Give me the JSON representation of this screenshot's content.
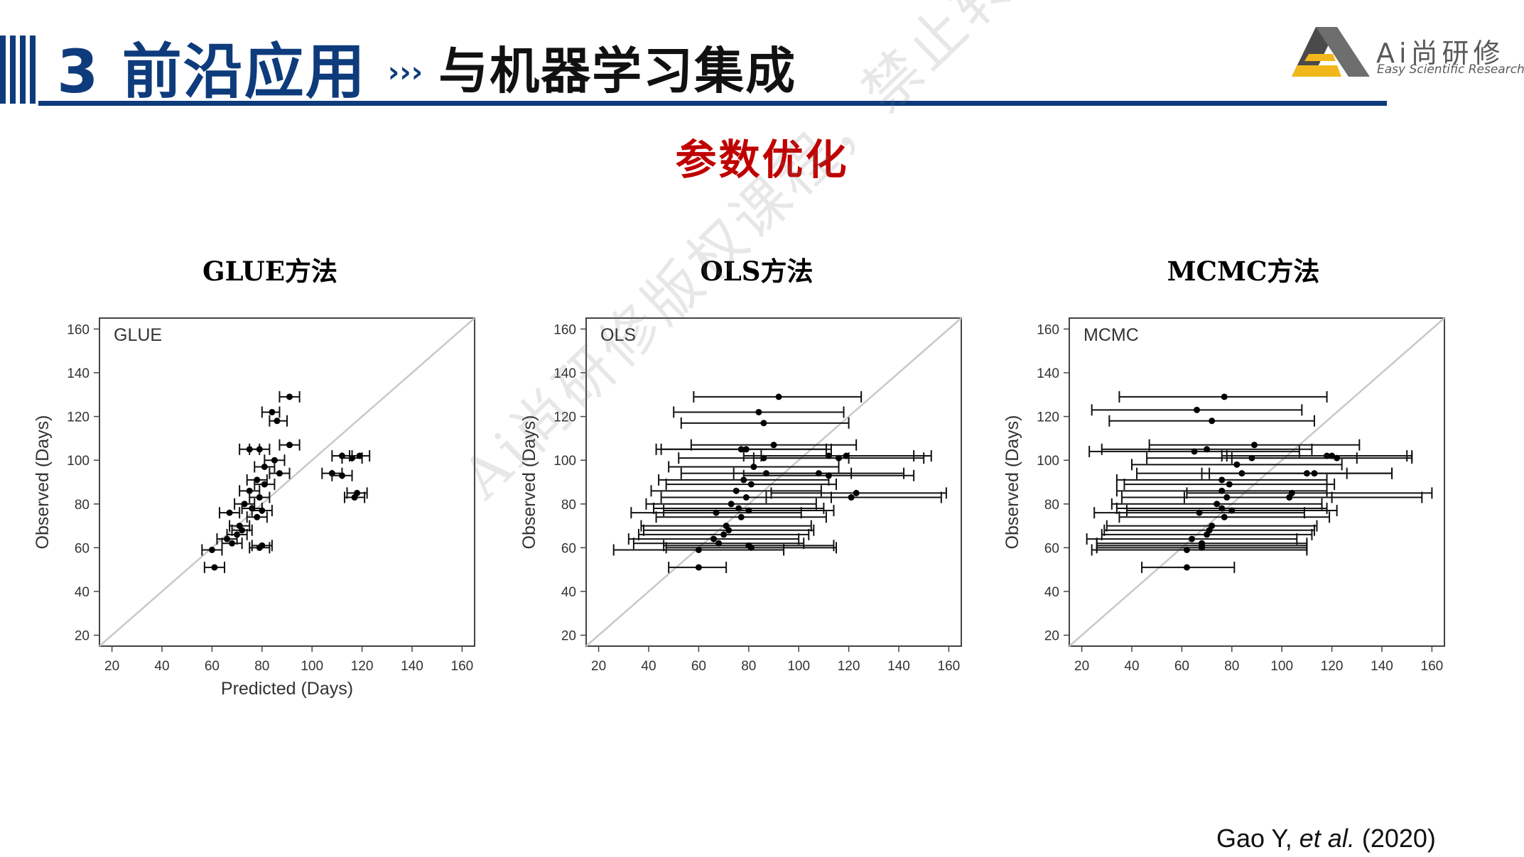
{
  "header": {
    "title_main": "3 前沿应用",
    "separator": "›››",
    "title_sub": "与机器学习集成"
  },
  "logo": {
    "text": "Ai尚研修",
    "tagline": "Easy Scientific Research"
  },
  "section_heading": "参数优化",
  "methods": [
    {
      "title": "GLUE方法"
    },
    {
      "title": "OLS方法"
    },
    {
      "title": "MCMC方法"
    }
  ],
  "watermark": "Ai尚研修版权课程，禁止转载、传播",
  "citation": {
    "author": "Gao Y, ",
    "etal": "et al.",
    "year": " (2020)"
  },
  "colors": {
    "brand_blue": "#0e3b7b",
    "heading_red": "#c00000",
    "identity_line": "#c8c8c8"
  },
  "chart_data": [
    {
      "type": "scatter",
      "panel_label": "GLUE",
      "xlabel": "Predicted (Days)",
      "ylabel": "Observed (Days)",
      "xlim": [
        15,
        165
      ],
      "ylim": [
        15,
        165
      ],
      "xticks": [
        20,
        40,
        60,
        80,
        100,
        120,
        140,
        160
      ],
      "yticks": [
        20,
        40,
        60,
        80,
        100,
        120,
        140,
        160
      ],
      "reference_line": "1:1",
      "points": [
        {
          "x": 91,
          "y": 129,
          "lo": 87,
          "hi": 95
        },
        {
          "x": 84,
          "y": 122,
          "lo": 80,
          "hi": 87
        },
        {
          "x": 86,
          "y": 118,
          "lo": 83,
          "hi": 90
        },
        {
          "x": 91,
          "y": 107,
          "lo": 87,
          "hi": 95
        },
        {
          "x": 75,
          "y": 105,
          "lo": 71,
          "hi": 79
        },
        {
          "x": 79,
          "y": 105,
          "lo": 75,
          "hi": 83
        },
        {
          "x": 85,
          "y": 100,
          "lo": 81,
          "hi": 89
        },
        {
          "x": 81,
          "y": 97,
          "lo": 77,
          "hi": 85
        },
        {
          "x": 87,
          "y": 94,
          "lo": 83,
          "hi": 91
        },
        {
          "x": 78,
          "y": 91,
          "lo": 74,
          "hi": 82
        },
        {
          "x": 81,
          "y": 89,
          "lo": 77,
          "hi": 85
        },
        {
          "x": 75,
          "y": 86,
          "lo": 71,
          "hi": 79
        },
        {
          "x": 79,
          "y": 83,
          "lo": 75,
          "hi": 83
        },
        {
          "x": 73,
          "y": 80,
          "lo": 69,
          "hi": 77
        },
        {
          "x": 76,
          "y": 78,
          "lo": 72,
          "hi": 80
        },
        {
          "x": 80,
          "y": 77,
          "lo": 76,
          "hi": 84
        },
        {
          "x": 67,
          "y": 76,
          "lo": 63,
          "hi": 71
        },
        {
          "x": 78,
          "y": 74,
          "lo": 74,
          "hi": 82
        },
        {
          "x": 71,
          "y": 70,
          "lo": 67,
          "hi": 75
        },
        {
          "x": 72,
          "y": 68,
          "lo": 68,
          "hi": 76
        },
        {
          "x": 70,
          "y": 66,
          "lo": 66,
          "hi": 74
        },
        {
          "x": 66,
          "y": 64,
          "lo": 62,
          "hi": 70
        },
        {
          "x": 68,
          "y": 62,
          "lo": 64,
          "hi": 72
        },
        {
          "x": 80,
          "y": 61,
          "lo": 76,
          "hi": 84
        },
        {
          "x": 79,
          "y": 60,
          "lo": 75,
          "hi": 83
        },
        {
          "x": 60,
          "y": 59,
          "lo": 56,
          "hi": 64
        },
        {
          "x": 61,
          "y": 51,
          "lo": 57,
          "hi": 65
        },
        {
          "x": 112,
          "y": 102,
          "lo": 108,
          "hi": 116
        },
        {
          "x": 116,
          "y": 101,
          "lo": 112,
          "hi": 120
        },
        {
          "x": 119,
          "y": 102,
          "lo": 115,
          "hi": 123
        },
        {
          "x": 108,
          "y": 94,
          "lo": 104,
          "hi": 112
        },
        {
          "x": 112,
          "y": 93,
          "lo": 108,
          "hi": 116
        },
        {
          "x": 117,
          "y": 83,
          "lo": 113,
          "hi": 121
        },
        {
          "x": 118,
          "y": 85,
          "lo": 114,
          "hi": 122
        }
      ]
    },
    {
      "type": "scatter",
      "panel_label": "OLS",
      "xlabel": "",
      "ylabel": "Observed (Days)",
      "xlim": [
        15,
        165
      ],
      "ylim": [
        15,
        165
      ],
      "xticks": [
        20,
        40,
        60,
        80,
        100,
        120,
        140,
        160
      ],
      "yticks": [
        20,
        40,
        60,
        80,
        100,
        120,
        140,
        160
      ],
      "reference_line": "1:1",
      "points": [
        {
          "x": 92,
          "y": 129,
          "lo": 58,
          "hi": 125
        },
        {
          "x": 84,
          "y": 122,
          "lo": 50,
          "hi": 118
        },
        {
          "x": 86,
          "y": 117,
          "lo": 53,
          "hi": 120
        },
        {
          "x": 90,
          "y": 107,
          "lo": 57,
          "hi": 123
        },
        {
          "x": 77,
          "y": 105,
          "lo": 43,
          "hi": 111
        },
        {
          "x": 79,
          "y": 105,
          "lo": 45,
          "hi": 113
        },
        {
          "x": 86,
          "y": 101,
          "lo": 52,
          "hi": 120
        },
        {
          "x": 82,
          "y": 97,
          "lo": 48,
          "hi": 116
        },
        {
          "x": 87,
          "y": 94,
          "lo": 53,
          "hi": 121
        },
        {
          "x": 78,
          "y": 91,
          "lo": 44,
          "hi": 112
        },
        {
          "x": 81,
          "y": 89,
          "lo": 47,
          "hi": 115
        },
        {
          "x": 75,
          "y": 86,
          "lo": 41,
          "hi": 109
        },
        {
          "x": 79,
          "y": 83,
          "lo": 45,
          "hi": 113
        },
        {
          "x": 73,
          "y": 80,
          "lo": 39,
          "hi": 107
        },
        {
          "x": 76,
          "y": 78,
          "lo": 42,
          "hi": 110
        },
        {
          "x": 80,
          "y": 77,
          "lo": 46,
          "hi": 114
        },
        {
          "x": 67,
          "y": 76,
          "lo": 33,
          "hi": 101
        },
        {
          "x": 77,
          "y": 74,
          "lo": 43,
          "hi": 111
        },
        {
          "x": 71,
          "y": 70,
          "lo": 37,
          "hi": 105
        },
        {
          "x": 72,
          "y": 68,
          "lo": 38,
          "hi": 106
        },
        {
          "x": 70,
          "y": 66,
          "lo": 36,
          "hi": 104
        },
        {
          "x": 66,
          "y": 64,
          "lo": 32,
          "hi": 100
        },
        {
          "x": 68,
          "y": 62,
          "lo": 34,
          "hi": 102
        },
        {
          "x": 80,
          "y": 61,
          "lo": 46,
          "hi": 114
        },
        {
          "x": 81,
          "y": 60,
          "lo": 47,
          "hi": 115
        },
        {
          "x": 60,
          "y": 59,
          "lo": 26,
          "hi": 94
        },
        {
          "x": 60,
          "y": 51,
          "lo": 48,
          "hi": 71
        },
        {
          "x": 112,
          "y": 102,
          "lo": 78,
          "hi": 146
        },
        {
          "x": 116,
          "y": 101,
          "lo": 82,
          "hi": 150
        },
        {
          "x": 119,
          "y": 102,
          "lo": 85,
          "hi": 153
        },
        {
          "x": 108,
          "y": 94,
          "lo": 74,
          "hi": 142
        },
        {
          "x": 112,
          "y": 93,
          "lo": 78,
          "hi": 146
        },
        {
          "x": 121,
          "y": 83,
          "lo": 87,
          "hi": 157
        },
        {
          "x": 123,
          "y": 85,
          "lo": 89,
          "hi": 159
        }
      ]
    },
    {
      "type": "scatter",
      "panel_label": "MCMC",
      "xlabel": "",
      "ylabel": "Observed (Days)",
      "xlim": [
        15,
        165
      ],
      "ylim": [
        15,
        165
      ],
      "xticks": [
        20,
        40,
        60,
        80,
        100,
        120,
        140,
        160
      ],
      "yticks": [
        20,
        40,
        60,
        80,
        100,
        120,
        140,
        160
      ],
      "reference_line": "1:1",
      "points": [
        {
          "x": 77,
          "y": 129,
          "lo": 35,
          "hi": 118
        },
        {
          "x": 66,
          "y": 123,
          "lo": 24,
          "hi": 108
        },
        {
          "x": 72,
          "y": 118,
          "lo": 31,
          "hi": 113
        },
        {
          "x": 89,
          "y": 107,
          "lo": 47,
          "hi": 131
        },
        {
          "x": 65,
          "y": 104,
          "lo": 23,
          "hi": 107
        },
        {
          "x": 70,
          "y": 105,
          "lo": 28,
          "hi": 112
        },
        {
          "x": 88,
          "y": 101,
          "lo": 46,
          "hi": 130
        },
        {
          "x": 82,
          "y": 98,
          "lo": 40,
          "hi": 124
        },
        {
          "x": 84,
          "y": 94,
          "lo": 42,
          "hi": 126
        },
        {
          "x": 76,
          "y": 91,
          "lo": 34,
          "hi": 118
        },
        {
          "x": 79,
          "y": 89,
          "lo": 37,
          "hi": 121
        },
        {
          "x": 76,
          "y": 86,
          "lo": 34,
          "hi": 118
        },
        {
          "x": 78,
          "y": 83,
          "lo": 36,
          "hi": 120
        },
        {
          "x": 74,
          "y": 80,
          "lo": 32,
          "hi": 116
        },
        {
          "x": 76,
          "y": 78,
          "lo": 34,
          "hi": 118
        },
        {
          "x": 80,
          "y": 77,
          "lo": 38,
          "hi": 122
        },
        {
          "x": 67,
          "y": 76,
          "lo": 25,
          "hi": 109
        },
        {
          "x": 77,
          "y": 74,
          "lo": 35,
          "hi": 119
        },
        {
          "x": 72,
          "y": 70,
          "lo": 30,
          "hi": 114
        },
        {
          "x": 71,
          "y": 68,
          "lo": 29,
          "hi": 113
        },
        {
          "x": 70,
          "y": 66,
          "lo": 28,
          "hi": 112
        },
        {
          "x": 64,
          "y": 64,
          "lo": 22,
          "hi": 106
        },
        {
          "x": 68,
          "y": 62,
          "lo": 26,
          "hi": 110
        },
        {
          "x": 68,
          "y": 61,
          "lo": 26,
          "hi": 110
        },
        {
          "x": 68,
          "y": 60,
          "lo": 26,
          "hi": 110
        },
        {
          "x": 62,
          "y": 59,
          "lo": 24,
          "hi": 110
        },
        {
          "x": 62,
          "y": 51,
          "lo": 44,
          "hi": 81
        },
        {
          "x": 118,
          "y": 102,
          "lo": 76,
          "hi": 150
        },
        {
          "x": 120,
          "y": 102,
          "lo": 78,
          "hi": 152
        },
        {
          "x": 122,
          "y": 101,
          "lo": 80,
          "hi": 152
        },
        {
          "x": 110,
          "y": 94,
          "lo": 68,
          "hi": 144
        },
        {
          "x": 113,
          "y": 94,
          "lo": 71,
          "hi": 144
        },
        {
          "x": 103,
          "y": 83,
          "lo": 61,
          "hi": 156
        },
        {
          "x": 104,
          "y": 85,
          "lo": 62,
          "hi": 160
        }
      ]
    }
  ]
}
